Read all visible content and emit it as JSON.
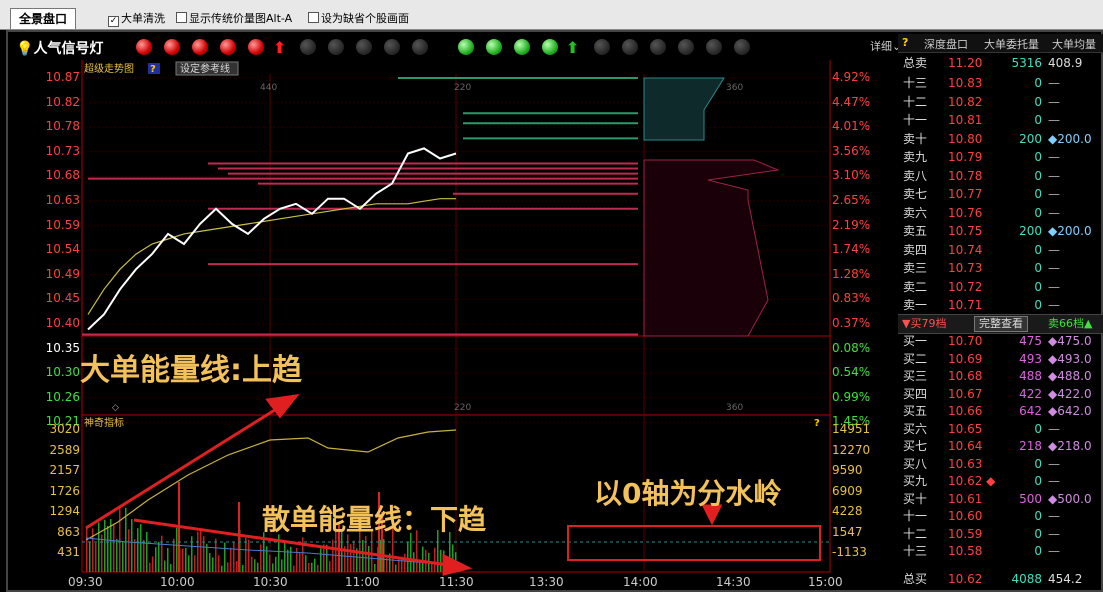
{
  "top": {
    "tab": "全景盘口",
    "options": [
      {
        "label": "大单清洗",
        "checked": true
      },
      {
        "label": "显示传统价量图Alt-A",
        "checked": false
      },
      {
        "label": "设为缺省个股画面",
        "checked": false
      }
    ]
  },
  "signals": {
    "title": "人气信号灯",
    "detail": "详细",
    "red_on": 5,
    "green_on": 4
  },
  "chart": {
    "title": "超级走势图",
    "ref_button": "设定参考线",
    "sub_title": "神奇指标",
    "time_labels": [
      "09:30",
      "10:00",
      "10:30",
      "11:00",
      "11:30",
      "13:30",
      "14:00",
      "14:30",
      "15:00"
    ],
    "price_labels": [
      "10.87",
      "10.82",
      "10.78",
      "10.73",
      "10.68",
      "10.63",
      "10.59",
      "10.54",
      "10.49",
      "10.45",
      "10.40",
      "10.35",
      "10.30",
      "10.26",
      "10.21"
    ],
    "pct_labels": [
      "4.92%",
      "4.47%",
      "4.01%",
      "3.56%",
      "3.10%",
      "2.65%",
      "2.19%",
      "1.74%",
      "1.28%",
      "0.83%",
      "0.37%",
      "0.08%",
      "0.54%",
      "0.99%",
      "1.45%"
    ],
    "ind_left": [
      "3020",
      "2589",
      "2157",
      "1726",
      "1294",
      "863",
      "431"
    ],
    "ind_right": [
      "14951",
      "12270",
      "9590",
      "6909",
      "4228",
      "1547",
      "-1133"
    ],
    "grid_top": [
      "440",
      "220",
      "360"
    ],
    "grid_bot": [
      "220",
      "360"
    ],
    "annotation_big": "大单能量线:上趋",
    "annotation_small": "散单能量线：下趋",
    "annotation_zero": "以0轴为分水岭",
    "intraday_price": [
      10.37,
      10.4,
      10.45,
      10.49,
      10.52,
      10.56,
      10.54,
      10.58,
      10.61,
      10.58,
      10.56,
      10.59,
      10.61,
      10.62,
      10.6,
      10.63,
      10.63,
      10.61,
      10.64,
      10.66,
      10.72,
      10.73,
      10.71,
      10.72
    ],
    "avg_price": [
      10.4,
      10.45,
      10.49,
      10.52,
      10.54,
      10.55,
      10.56,
      10.565,
      10.57,
      10.575,
      10.58,
      10.585,
      10.59,
      10.595,
      10.6,
      10.605,
      10.61,
      10.615,
      10.62,
      10.62,
      10.62,
      10.625,
      10.63,
      10.63
    ]
  },
  "depth": {
    "header": [
      "深度盘口",
      "大单委托量",
      "大单均量"
    ],
    "total_sell": {
      "name": "总卖",
      "price": "11.20",
      "vol": "5316",
      "big": "408.9"
    },
    "sells": [
      {
        "name": "十三",
        "price": "10.83",
        "vol": "0",
        "big": "—"
      },
      {
        "name": "十二",
        "price": "10.82",
        "vol": "0",
        "big": "—"
      },
      {
        "name": "十一",
        "price": "10.81",
        "vol": "0",
        "big": "—"
      },
      {
        "name": "卖十",
        "price": "10.80",
        "vol": "200",
        "big": "◆200.0"
      },
      {
        "name": "卖九",
        "price": "10.79",
        "vol": "0",
        "big": "—"
      },
      {
        "name": "卖八",
        "price": "10.78",
        "vol": "0",
        "big": "—"
      },
      {
        "name": "卖七",
        "price": "10.77",
        "vol": "0",
        "big": "—"
      },
      {
        "name": "卖六",
        "price": "10.76",
        "vol": "0",
        "big": "—"
      },
      {
        "name": "卖五",
        "price": "10.75",
        "vol": "200",
        "big": "◆200.0"
      },
      {
        "name": "卖四",
        "price": "10.74",
        "vol": "0",
        "big": "—"
      },
      {
        "name": "卖三",
        "price": "10.73",
        "vol": "0",
        "big": "—"
      },
      {
        "name": "卖二",
        "price": "10.72",
        "vol": "0",
        "big": "—"
      },
      {
        "name": "卖一",
        "price": "10.71",
        "vol": "0",
        "big": "—"
      }
    ],
    "mid": {
      "buy_tab": "▼买79档",
      "view": "完整查看",
      "sell_tab": "卖66档▲"
    },
    "buys": [
      {
        "name": "买一",
        "price": "10.70",
        "vol": "475",
        "big": "◆475.0"
      },
      {
        "name": "买二",
        "price": "10.69",
        "vol": "493",
        "big": "◆493.0"
      },
      {
        "name": "买三",
        "price": "10.68",
        "vol": "488",
        "big": "◆488.0"
      },
      {
        "name": "买四",
        "price": "10.67",
        "vol": "422",
        "big": "◆422.0"
      },
      {
        "name": "买五",
        "price": "10.66",
        "vol": "642",
        "big": "◆642.0"
      },
      {
        "name": "买六",
        "price": "10.65",
        "vol": "0",
        "big": "—"
      },
      {
        "name": "买七",
        "price": "10.64",
        "vol": "218",
        "big": "◆218.0"
      },
      {
        "name": "买八",
        "price": "10.63",
        "vol": "0",
        "big": "—"
      },
      {
        "name": "买九",
        "price": "10.62 ◆",
        "vol": "0",
        "big": "—"
      },
      {
        "name": "买十",
        "price": "10.61",
        "vol": "500",
        "big": "◆500.0"
      },
      {
        "name": "十一",
        "price": "10.60",
        "vol": "0",
        "big": "—"
      },
      {
        "name": "十二",
        "price": "10.59",
        "vol": "0",
        "big": "—"
      },
      {
        "name": "十三",
        "price": "10.58",
        "vol": "0",
        "big": "—"
      }
    ],
    "total_buy": {
      "name": "总买",
      "price": "10.62",
      "vol": "4088",
      "big": "454.2"
    }
  },
  "colors": {
    "up": "#ff3c3c",
    "down": "#2fd02f",
    "vol": "#d08ce0",
    "label": "#f3c15a",
    "axis": "#b00000"
  }
}
